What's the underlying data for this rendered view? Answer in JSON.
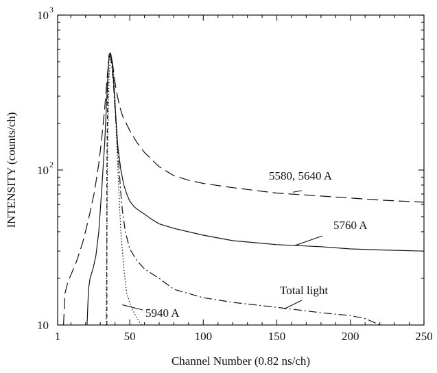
{
  "chart_data": {
    "type": "line",
    "xlabel": "Channel Number (0.82 ns/ch)",
    "ylabel": "INTENSITY (counts/ch)",
    "xlim": [
      1,
      250
    ],
    "ylim": [
      10,
      1000
    ],
    "yscale": "log",
    "grid": false,
    "x_ticks": [
      {
        "value": 1,
        "label": "1"
      },
      {
        "value": 50,
        "label": "50"
      },
      {
        "value": 100,
        "label": "100"
      },
      {
        "value": 150,
        "label": "150"
      },
      {
        "value": 200,
        "label": "200"
      },
      {
        "value": 250,
        "label": "250"
      }
    ],
    "y_ticks": [
      {
        "value": 10,
        "base": "10",
        "exp": ""
      },
      {
        "value": 100,
        "base": "10",
        "exp": "2"
      },
      {
        "value": 1000,
        "base": "10",
        "exp": "3"
      }
    ],
    "series": [
      {
        "name": "5580, 5640 A",
        "line_style": "dashed",
        "x": [
          5,
          6,
          8,
          10,
          14,
          18,
          22,
          26,
          29,
          31,
          33,
          34,
          35,
          36,
          37,
          38,
          39,
          40,
          41,
          42,
          43,
          45,
          50,
          55,
          60,
          70,
          80,
          90,
          100,
          120,
          150,
          180,
          200,
          220,
          250
        ],
        "y": [
          10,
          16,
          19,
          21,
          26,
          34,
          48,
          72,
          110,
          160,
          250,
          330,
          430,
          530,
          560,
          510,
          440,
          370,
          320,
          290,
          260,
          225,
          180,
          150,
          130,
          105,
          92,
          86,
          82,
          77,
          71,
          68,
          66,
          64,
          62
        ]
      },
      {
        "name": "5760 A",
        "line_style": "solid",
        "x": [
          21,
          22,
          23,
          25,
          27,
          29,
          31,
          33,
          34,
          35,
          36,
          37,
          38,
          39,
          40,
          41,
          42,
          44,
          46,
          48,
          50,
          53,
          56,
          60,
          65,
          70,
          80,
          100,
          120,
          150,
          180,
          200,
          220,
          250
        ],
        "y": [
          10,
          17,
          20,
          23,
          28,
          40,
          75,
          150,
          240,
          380,
          560,
          570,
          500,
          380,
          270,
          190,
          140,
          100,
          80,
          70,
          63,
          58,
          55,
          52,
          48,
          45,
          42,
          38,
          35,
          33,
          32,
          31,
          30.5,
          30
        ]
      },
      {
        "name": "5940 A",
        "line_style": "dotted",
        "x": [
          34,
          35,
          36,
          37,
          38,
          39,
          40,
          41,
          42,
          43,
          44,
          45,
          46,
          47,
          48,
          50,
          52,
          55,
          58
        ],
        "y": [
          10,
          150,
          400,
          570,
          520,
          420,
          300,
          160,
          100,
          60,
          40,
          30,
          23,
          19,
          16,
          14,
          12.5,
          11,
          10
        ]
      },
      {
        "name": "Total light",
        "line_style": "dashdot",
        "x": [
          37,
          38,
          39,
          40,
          41,
          42,
          43,
          44,
          45,
          47,
          50,
          55,
          60,
          70,
          80,
          100,
          120,
          150,
          180,
          200,
          210,
          215,
          220
        ],
        "y": [
          550,
          460,
          350,
          250,
          180,
          130,
          95,
          70,
          55,
          40,
          31,
          26,
          23,
          20,
          17,
          15,
          14,
          13,
          12,
          11.5,
          11,
          10.5,
          10
        ]
      },
      {
        "name": "",
        "line_style": "short-dash",
        "x": [
          34.5,
          34.5,
          35,
          35.5,
          36
        ],
        "y": [
          10,
          100,
          300,
          480,
          560
        ]
      }
    ],
    "annotations": [
      {
        "text": "5580, 5640 A",
        "points_to": {
          "x": 161,
          "y": 72
        }
      },
      {
        "text": "5760 A",
        "points_to": {
          "x": 162,
          "y": 32.5
        }
      },
      {
        "text": "Total light",
        "points_to": {
          "x": 155,
          "y": 12.7
        }
      },
      {
        "text": "5940 A",
        "points_to": {
          "x": 45,
          "y": 13.5
        }
      }
    ]
  }
}
